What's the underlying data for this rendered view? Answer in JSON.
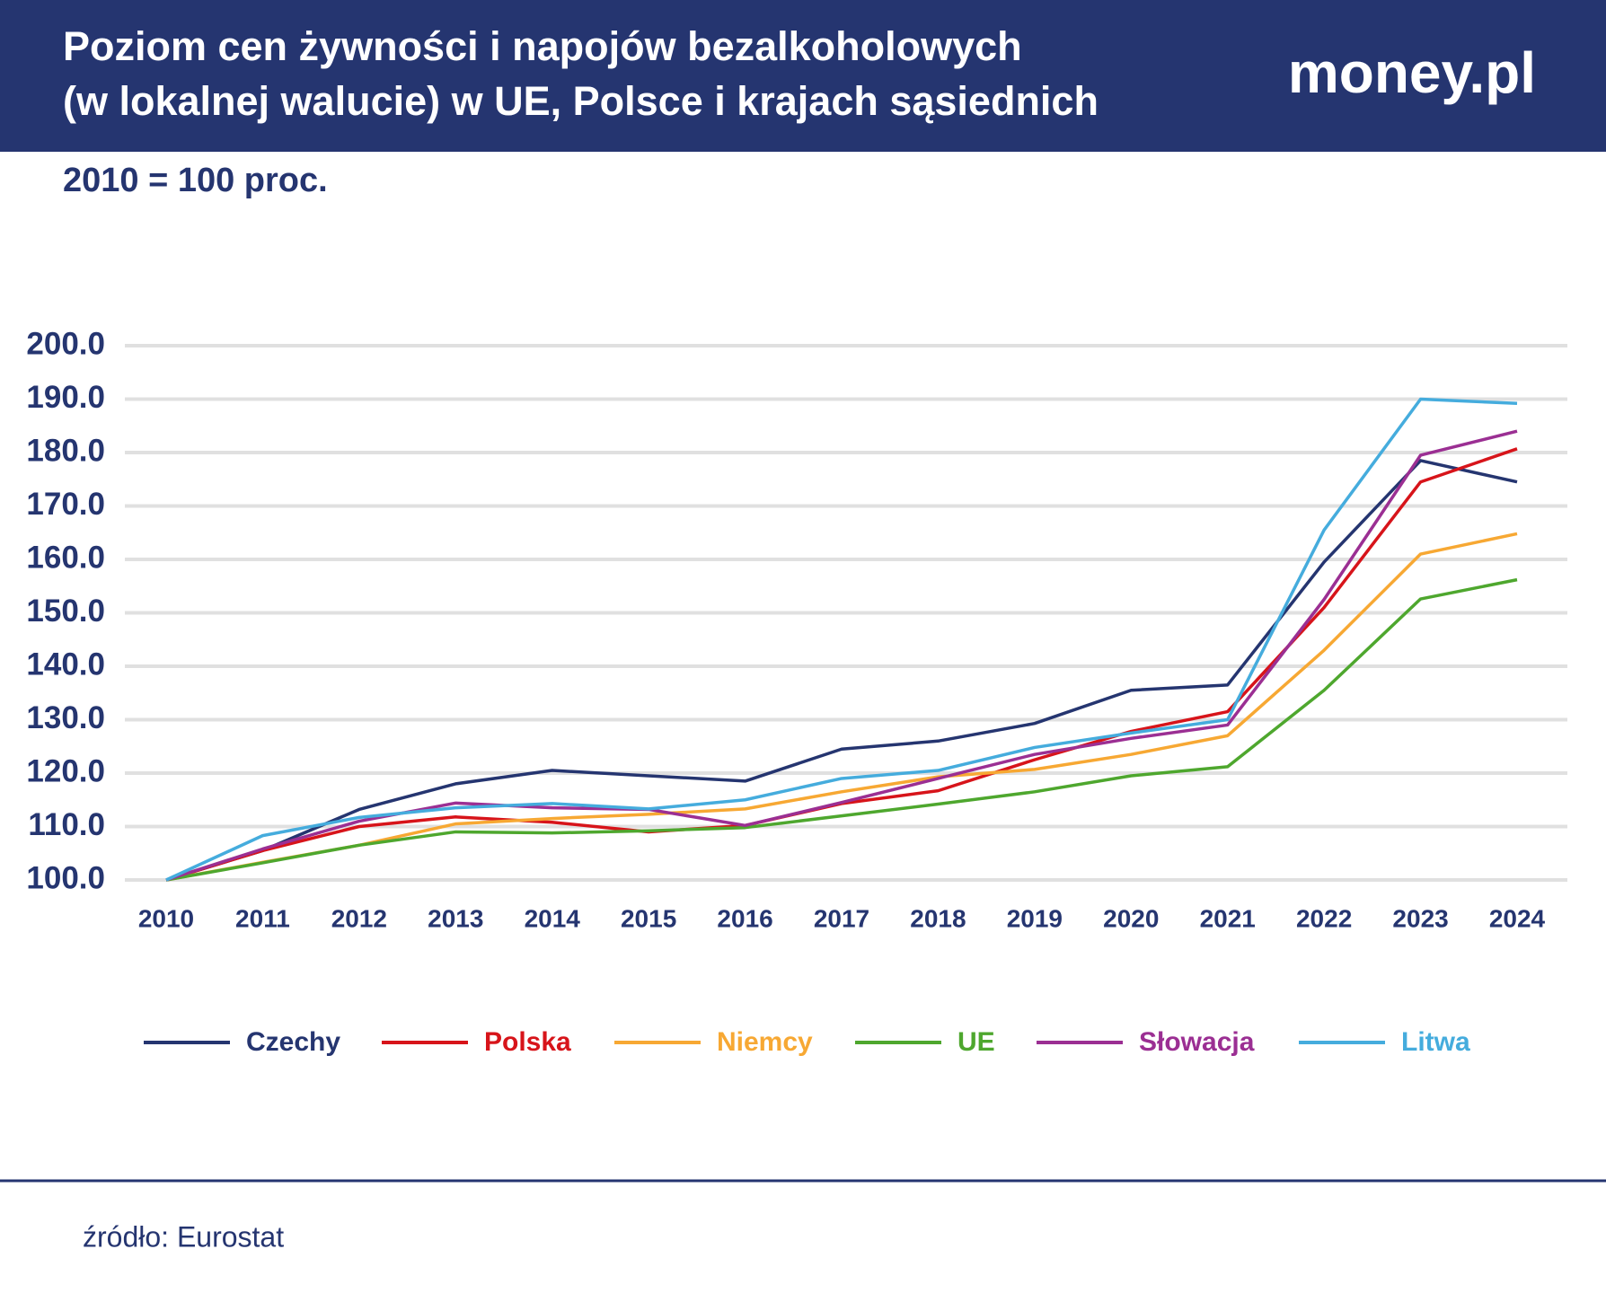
{
  "chart_data": {
    "type": "line",
    "title": [
      "Poziom cen żywności i napojów bezalkoholowych",
      "(w lokalnej walucie) w UE, Polsce i krajach sąsiednich"
    ],
    "brand": "money.pl",
    "subtitle": "2010 = 100 proc.",
    "source": "źródło: Eurostat",
    "categories": [
      "2010",
      "2011",
      "2012",
      "2013",
      "2014",
      "2015",
      "2016",
      "2017",
      "2018",
      "2019",
      "2020",
      "2021",
      "2022",
      "2023",
      "2024"
    ],
    "series": [
      {
        "name": "Czechy",
        "color": "#253570",
        "values": [
          100,
          105.5,
          113.2,
          118,
          120.5,
          119.5,
          118.5,
          124.5,
          126,
          129.3,
          135.5,
          136.5,
          159.5,
          178.5,
          174.5
        ]
      },
      {
        "name": "Polska",
        "color": "#d7141a",
        "values": [
          100,
          105.5,
          110,
          111.8,
          110.8,
          109,
          110.2,
          114.3,
          116.7,
          122.5,
          127.8,
          131.5,
          151,
          174.5,
          180.7
        ]
      },
      {
        "name": "Niemcy",
        "color": "#f7a833",
        "values": [
          100,
          103.3,
          106.5,
          110.5,
          111.5,
          112.3,
          113.3,
          116.5,
          119.3,
          120.7,
          123.5,
          127,
          143,
          161,
          164.8
        ]
      },
      {
        "name": "UE",
        "color": "#4ea72e",
        "values": [
          100,
          103.2,
          106.5,
          109,
          108.8,
          109.2,
          109.8,
          112,
          114.2,
          116.5,
          119.5,
          121.2,
          135.5,
          152.6,
          156.2
        ]
      },
      {
        "name": "Słowacja",
        "color": "#9b2f93",
        "values": [
          100,
          105.8,
          111,
          114.4,
          113.5,
          113.2,
          110.2,
          114.5,
          119,
          123.5,
          126.5,
          129,
          152.5,
          179.5,
          184
        ]
      },
      {
        "name": "Litwa",
        "color": "#45acdd",
        "values": [
          100,
          108.3,
          111.7,
          113.5,
          114.3,
          113.3,
          115,
          119,
          120.5,
          124.8,
          127.5,
          130,
          165.5,
          190,
          189.2
        ]
      }
    ],
    "ylim": [
      100,
      200
    ],
    "yticks": [
      {
        "value": 100,
        "label": "100.0"
      },
      {
        "value": 110,
        "label": "110.0"
      },
      {
        "value": 120,
        "label": "120.0"
      },
      {
        "value": 130,
        "label": "130.0"
      },
      {
        "value": 140,
        "label": "140.0"
      },
      {
        "value": 150,
        "label": "150.0"
      },
      {
        "value": 160,
        "label": "160.0"
      },
      {
        "value": 170,
        "label": "170.0"
      },
      {
        "value": 180,
        "label": "180.0"
      },
      {
        "value": 190,
        "label": "190.0"
      },
      {
        "value": 200,
        "label": "200.0"
      }
    ],
    "grid": true
  }
}
